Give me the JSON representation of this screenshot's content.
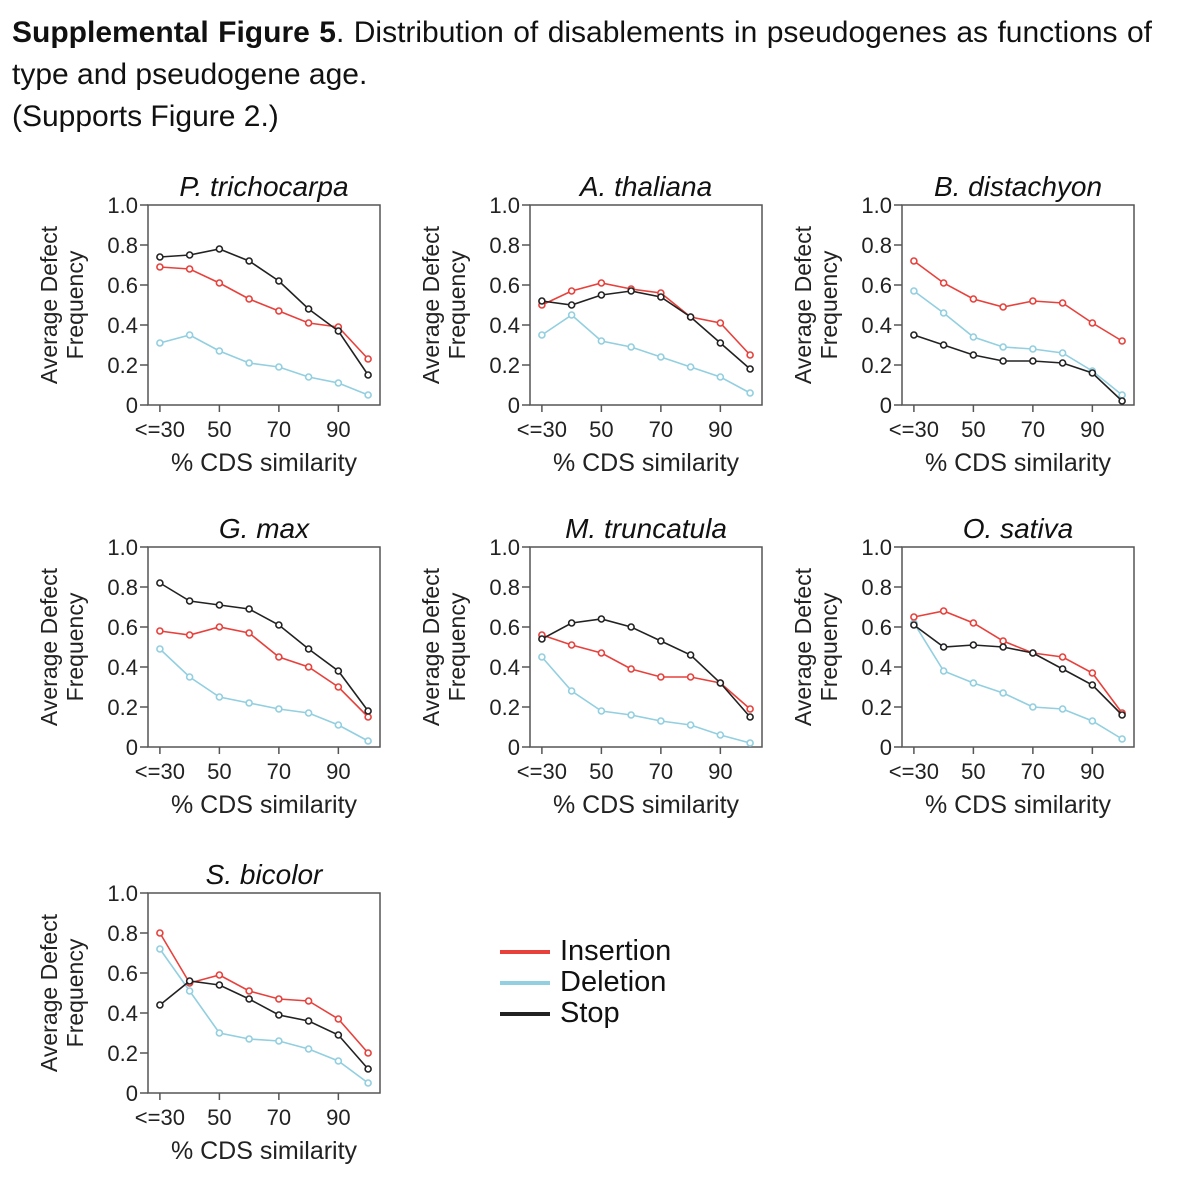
{
  "caption": {
    "bold": "Supplemental Figure 5",
    "text": ". Distribution of disablements in pseudogenes as functions of type and pseudogene age.",
    "note": "(Supports Figure 2.)"
  },
  "colors": {
    "insertion": "#e8413c",
    "deletion": "#92cfe0",
    "stop": "#222222",
    "frame": "#555555"
  },
  "legend": [
    {
      "label": "Insertion",
      "color": "#e8413c"
    },
    {
      "label": "Deletion",
      "color": "#92cfe0"
    },
    {
      "label": "Stop",
      "color": "#222222"
    }
  ],
  "chart_data": [
    {
      "type": "line",
      "title": "P. trichocarpa",
      "xlabel": "% CDS similarity",
      "ylabel": "Average Defect Frequency",
      "x": [
        30,
        40,
        50,
        60,
        70,
        80,
        90,
        100
      ],
      "x_ticks": [
        "<=30",
        "50",
        "70",
        "90"
      ],
      "y_ticks": [
        "0",
        "0.2",
        "0.4",
        "0.6",
        "0.8",
        "1.0"
      ],
      "ylim": [
        0,
        1
      ],
      "series": [
        {
          "name": "Insertion",
          "values": [
            0.69,
            0.68,
            0.61,
            0.53,
            0.47,
            0.41,
            0.39,
            0.23
          ]
        },
        {
          "name": "Deletion",
          "values": [
            0.31,
            0.35,
            0.27,
            0.21,
            0.19,
            0.14,
            0.11,
            0.05
          ]
        },
        {
          "name": "Stop",
          "values": [
            0.74,
            0.75,
            0.78,
            0.72,
            0.62,
            0.48,
            0.37,
            0.15
          ]
        }
      ]
    },
    {
      "type": "line",
      "title": "A. thaliana",
      "xlabel": "% CDS similarity",
      "ylabel": "Average Defect Frequency",
      "x": [
        30,
        40,
        50,
        60,
        70,
        80,
        90,
        100
      ],
      "x_ticks": [
        "<=30",
        "50",
        "70",
        "90"
      ],
      "y_ticks": [
        "0",
        "0.2",
        "0.4",
        "0.6",
        "0.8",
        "1.0"
      ],
      "ylim": [
        0,
        1
      ],
      "series": [
        {
          "name": "Insertion",
          "values": [
            0.5,
            0.57,
            0.61,
            0.58,
            0.56,
            0.44,
            0.41,
            0.25
          ]
        },
        {
          "name": "Deletion",
          "values": [
            0.35,
            0.45,
            0.32,
            0.29,
            0.24,
            0.19,
            0.14,
            0.06
          ]
        },
        {
          "name": "Stop",
          "values": [
            0.52,
            0.5,
            0.55,
            0.57,
            0.54,
            0.44,
            0.31,
            0.18
          ]
        }
      ]
    },
    {
      "type": "line",
      "title": "B. distachyon",
      "xlabel": "% CDS similarity",
      "ylabel": "Average Defect Frequency",
      "x": [
        30,
        40,
        50,
        60,
        70,
        80,
        90,
        100
      ],
      "x_ticks": [
        "<=30",
        "50",
        "70",
        "90"
      ],
      "y_ticks": [
        "0",
        "0.2",
        "0.4",
        "0.6",
        "0.8",
        "1.0"
      ],
      "ylim": [
        0,
        1
      ],
      "series": [
        {
          "name": "Insertion",
          "values": [
            0.72,
            0.61,
            0.53,
            0.49,
            0.52,
            0.51,
            0.41,
            0.32
          ]
        },
        {
          "name": "Deletion",
          "values": [
            0.57,
            0.46,
            0.34,
            0.29,
            0.28,
            0.26,
            0.17,
            0.05
          ]
        },
        {
          "name": "Stop",
          "values": [
            0.35,
            0.3,
            0.25,
            0.22,
            0.22,
            0.21,
            0.16,
            0.02
          ]
        }
      ]
    },
    {
      "type": "line",
      "title": "G. max",
      "xlabel": "% CDS similarity",
      "ylabel": "Average Defect Frequency",
      "x": [
        30,
        40,
        50,
        60,
        70,
        80,
        90,
        100
      ],
      "x_ticks": [
        "<=30",
        "50",
        "70",
        "90"
      ],
      "y_ticks": [
        "0",
        "0.2",
        "0.4",
        "0.6",
        "0.8",
        "1.0"
      ],
      "ylim": [
        0,
        1
      ],
      "series": [
        {
          "name": "Insertion",
          "values": [
            0.58,
            0.56,
            0.6,
            0.57,
            0.45,
            0.4,
            0.3,
            0.15
          ]
        },
        {
          "name": "Deletion",
          "values": [
            0.49,
            0.35,
            0.25,
            0.22,
            0.19,
            0.17,
            0.11,
            0.03
          ]
        },
        {
          "name": "Stop",
          "values": [
            0.82,
            0.73,
            0.71,
            0.69,
            0.61,
            0.49,
            0.38,
            0.18
          ]
        }
      ]
    },
    {
      "type": "line",
      "title": "M. truncatula",
      "xlabel": "% CDS similarity",
      "ylabel": "Average Defect Frequency",
      "x": [
        30,
        40,
        50,
        60,
        70,
        80,
        90,
        100
      ],
      "x_ticks": [
        "<=30",
        "50",
        "70",
        "90"
      ],
      "y_ticks": [
        "0",
        "0.2",
        "0.4",
        "0.6",
        "0.8",
        "1.0"
      ],
      "ylim": [
        0,
        1
      ],
      "series": [
        {
          "name": "Insertion",
          "values": [
            0.56,
            0.51,
            0.47,
            0.39,
            0.35,
            0.35,
            0.32,
            0.19
          ]
        },
        {
          "name": "Deletion",
          "values": [
            0.45,
            0.28,
            0.18,
            0.16,
            0.13,
            0.11,
            0.06,
            0.02
          ]
        },
        {
          "name": "Stop",
          "values": [
            0.54,
            0.62,
            0.64,
            0.6,
            0.53,
            0.46,
            0.32,
            0.15
          ]
        }
      ]
    },
    {
      "type": "line",
      "title": "O. sativa",
      "xlabel": "% CDS similarity",
      "ylabel": "Average Defect Frequency",
      "x": [
        30,
        40,
        50,
        60,
        70,
        80,
        90,
        100
      ],
      "x_ticks": [
        "<=30",
        "50",
        "70",
        "90"
      ],
      "y_ticks": [
        "0",
        "0.2",
        "0.4",
        "0.6",
        "0.8",
        "1.0"
      ],
      "ylim": [
        0,
        1
      ],
      "series": [
        {
          "name": "Insertion",
          "values": [
            0.65,
            0.68,
            0.62,
            0.53,
            0.47,
            0.45,
            0.37,
            0.17
          ]
        },
        {
          "name": "Deletion",
          "values": [
            0.62,
            0.38,
            0.32,
            0.27,
            0.2,
            0.19,
            0.13,
            0.04
          ]
        },
        {
          "name": "Stop",
          "values": [
            0.61,
            0.5,
            0.51,
            0.5,
            0.47,
            0.39,
            0.31,
            0.16
          ]
        }
      ]
    },
    {
      "type": "line",
      "title": "S. bicolor",
      "xlabel": "% CDS similarity",
      "ylabel": "Average Defect Frequency",
      "x": [
        30,
        40,
        50,
        60,
        70,
        80,
        90,
        100
      ],
      "x_ticks": [
        "<=30",
        "50",
        "70",
        "90"
      ],
      "y_ticks": [
        "0",
        "0.2",
        "0.4",
        "0.6",
        "0.8",
        "1.0"
      ],
      "ylim": [
        0,
        1
      ],
      "series": [
        {
          "name": "Insertion",
          "values": [
            0.8,
            0.55,
            0.59,
            0.51,
            0.47,
            0.46,
            0.37,
            0.2
          ]
        },
        {
          "name": "Deletion",
          "values": [
            0.72,
            0.51,
            0.3,
            0.27,
            0.26,
            0.22,
            0.16,
            0.05
          ]
        },
        {
          "name": "Stop",
          "values": [
            0.44,
            0.56,
            0.54,
            0.47,
            0.39,
            0.36,
            0.29,
            0.12
          ]
        }
      ]
    }
  ]
}
